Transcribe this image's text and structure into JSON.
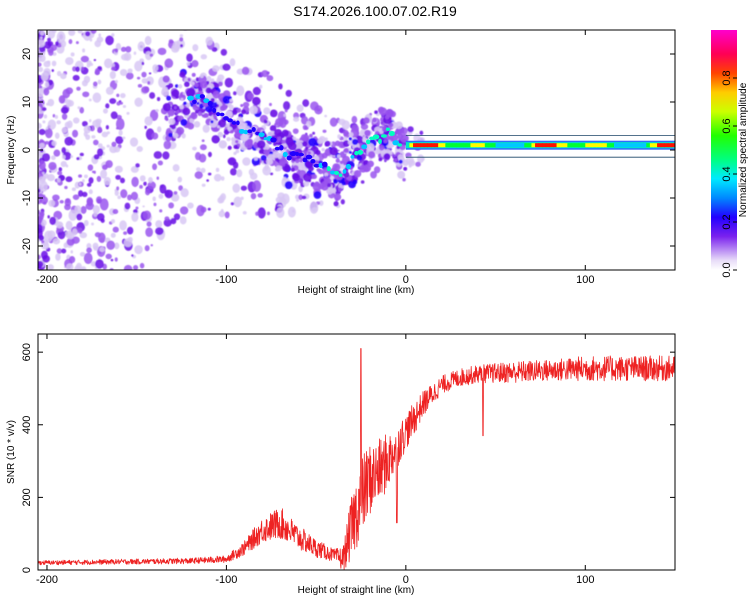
{
  "figure": {
    "title": "S174.2026.100.07.02.R19"
  },
  "colors": {
    "snr_line": "#ee2222",
    "frame": "#000000",
    "colormap": [
      "#ffffff",
      "#d8c8f4",
      "#9a55ee",
      "#6a12e6",
      "#2200ff",
      "#0066ff",
      "#00c8ff",
      "#00ffc0",
      "#00ff33",
      "#88ff00",
      "#ffff00",
      "#ff9900",
      "#ff1100",
      "#ff0066",
      "#ff00cc"
    ]
  },
  "chart_data": [
    {
      "type": "heatmap",
      "name": "spectrogram",
      "xlabel": "Height of straight line (km)",
      "ylabel": "Frequency (Hz)",
      "xlim": [
        -205,
        150
      ],
      "ylim": [
        -25,
        25
      ],
      "xticks": [
        -200,
        -100,
        0,
        100
      ],
      "xtick_labels": [
        "-200",
        "-100",
        "0",
        "100"
      ],
      "yticks": [
        -20,
        -10,
        0,
        10,
        20
      ],
      "ytick_labels": [
        "-20",
        "-10",
        "0",
        "10",
        "20"
      ],
      "colorbar": {
        "label": "Normalized spectral amplitude",
        "range": [
          0.0,
          1.0
        ],
        "ticks": [
          0.0,
          0.2,
          0.4,
          0.6,
          0.8
        ],
        "tick_labels": [
          "0.0",
          "0.2",
          "0.4",
          "0.6",
          "0.8"
        ]
      },
      "ridge": {
        "x": [
          -130,
          -115,
          -105,
          -95,
          -85,
          -75,
          -65,
          -55,
          -45,
          -38,
          -32,
          -27,
          -22,
          -17,
          -12,
          -9,
          -6,
          -3,
          0,
          5,
          20,
          40,
          60,
          80,
          100,
          120,
          150
        ],
        "y": [
          9,
          11,
          8,
          5,
          4,
          2,
          -1,
          -2,
          -3,
          -5,
          -3,
          -1,
          1,
          2,
          3,
          4,
          2,
          0,
          0,
          1,
          1,
          1,
          1,
          1,
          1,
          1,
          1
        ]
      }
    },
    {
      "type": "line",
      "name": "snr",
      "xlabel": "Height of straight line (km)",
      "ylabel": "SNR (10 * v/v)",
      "xlim": [
        -205,
        150
      ],
      "ylim": [
        0,
        650
      ],
      "xticks": [
        -200,
        -100,
        0,
        100
      ],
      "xtick_labels": [
        "-200",
        "-100",
        "0",
        "100"
      ],
      "yticks": [
        0,
        200,
        400,
        600
      ],
      "ytick_labels": [
        "0",
        "200",
        "400",
        "600"
      ],
      "envelope": {
        "x": [
          -205,
          -120,
          -100,
          -90,
          -80,
          -70,
          -60,
          -50,
          -40,
          -35,
          -30,
          -25,
          -20,
          -15,
          -10,
          -5,
          0,
          5,
          10,
          20,
          30,
          40,
          60,
          80,
          100,
          120,
          150
        ],
        "mean": [
          20,
          25,
          30,
          60,
          110,
          130,
          90,
          60,
          40,
          30,
          120,
          200,
          250,
          270,
          300,
          340,
          380,
          420,
          460,
          510,
          530,
          540,
          545,
          550,
          555,
          555,
          555
        ],
        "noise": [
          6,
          8,
          10,
          20,
          35,
          45,
          35,
          25,
          18,
          35,
          90,
          110,
          100,
          90,
          80,
          60,
          50,
          45,
          35,
          25,
          25,
          25,
          30,
          30,
          35,
          35,
          35
        ]
      },
      "spikes": [
        [
          -25,
          610
        ],
        [
          -5,
          130
        ],
        [
          43,
          370
        ]
      ]
    }
  ]
}
